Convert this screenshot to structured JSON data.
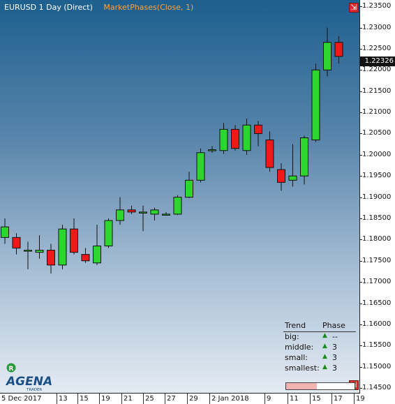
{
  "header": {
    "symbol_label": "EURUSD 1 Day (Direct)",
    "indicator_label": "MarketPhases(Close, 1)"
  },
  "buttons": {
    "maximize_top": "⇲",
    "maximize_bottom": "⇲"
  },
  "colors": {
    "bull": "#2fd52f",
    "bear": "#f01818",
    "background_top": "#1d5f8e",
    "background_bottom": "#e4ebf3",
    "phase_arrow": "#1c8a1c",
    "phase_bar_fill": "#f3b3b3"
  },
  "current_price": "1.22326",
  "chart_data": {
    "type": "candlestick",
    "instrument": "EURUSD",
    "timeframe": "1 Day",
    "ylim": [
      1.1437,
      1.2365
    ],
    "y_ticks": [
      "1.23500",
      "1.23000",
      "1.22500",
      "1.22000",
      "1.21500",
      "1.21000",
      "1.20500",
      "1.20000",
      "1.19500",
      "1.19000",
      "1.18500",
      "1.18000",
      "1.17500",
      "1.17000",
      "1.16500",
      "1.16000",
      "1.15500",
      "1.15000",
      "1.14500"
    ],
    "y_tick_values": [
      1.235,
      1.23,
      1.225,
      1.22,
      1.215,
      1.21,
      1.205,
      1.2,
      1.195,
      1.19,
      1.185,
      1.18,
      1.175,
      1.17,
      1.165,
      1.16,
      1.155,
      1.15,
      1.145
    ],
    "x_labels": [
      "5 Dec 2017",
      "13",
      "15",
      "19",
      "21",
      "25",
      "27",
      "29",
      "2 Jan 2018",
      "9",
      "11",
      "15",
      "17",
      "19"
    ],
    "candles": [
      {
        "open": 1.1805,
        "high": 1.185,
        "low": 1.179,
        "close": 1.183
      },
      {
        "open": 1.1805,
        "high": 1.1815,
        "low": 1.1765,
        "close": 1.178
      },
      {
        "open": 1.1775,
        "high": 1.1795,
        "low": 1.173,
        "close": 1.1775
      },
      {
        "open": 1.177,
        "high": 1.181,
        "low": 1.1755,
        "close": 1.1775
      },
      {
        "open": 1.1775,
        "high": 1.179,
        "low": 1.172,
        "close": 1.174
      },
      {
        "open": 1.174,
        "high": 1.1835,
        "low": 1.173,
        "close": 1.1825
      },
      {
        "open": 1.1825,
        "high": 1.185,
        "low": 1.1765,
        "close": 1.177
      },
      {
        "open": 1.1765,
        "high": 1.178,
        "low": 1.1745,
        "close": 1.175
      },
      {
        "open": 1.1745,
        "high": 1.1835,
        "low": 1.174,
        "close": 1.1785
      },
      {
        "open": 1.1785,
        "high": 1.185,
        "low": 1.178,
        "close": 1.1845
      },
      {
        "open": 1.1845,
        "high": 1.19,
        "low": 1.1835,
        "close": 1.187
      },
      {
        "open": 1.187,
        "high": 1.188,
        "low": 1.186,
        "close": 1.1865
      },
      {
        "open": 1.1865,
        "high": 1.188,
        "low": 1.182,
        "close": 1.1865
      },
      {
        "open": 1.186,
        "high": 1.1875,
        "low": 1.1845,
        "close": 1.187
      },
      {
        "open": 1.186,
        "high": 1.1865,
        "low": 1.1857,
        "close": 1.186
      },
      {
        "open": 1.186,
        "high": 1.1905,
        "low": 1.1858,
        "close": 1.19
      },
      {
        "open": 1.19,
        "high": 1.196,
        "low": 1.1898,
        "close": 1.194
      },
      {
        "open": 1.194,
        "high": 1.2015,
        "low": 1.1935,
        "close": 1.2005
      },
      {
        "open": 1.201,
        "high": 1.202,
        "low": 1.2005,
        "close": 1.2012
      },
      {
        "open": 1.201,
        "high": 1.2075,
        "low": 1.2002,
        "close": 1.206
      },
      {
        "open": 1.206,
        "high": 1.207,
        "low": 1.201,
        "close": 1.2015
      },
      {
        "open": 1.201,
        "high": 1.2085,
        "low": 1.2,
        "close": 1.207
      },
      {
        "open": 1.207,
        "high": 1.208,
        "low": 1.202,
        "close": 1.205
      },
      {
        "open": 1.2035,
        "high": 1.2055,
        "low": 1.196,
        "close": 1.197
      },
      {
        "open": 1.1965,
        "high": 1.198,
        "low": 1.1915,
        "close": 1.1935
      },
      {
        "open": 1.194,
        "high": 1.2025,
        "low": 1.1925,
        "close": 1.195
      },
      {
        "open": 1.195,
        "high": 1.2045,
        "low": 1.193,
        "close": 1.204
      },
      {
        "open": 1.2035,
        "high": 1.2215,
        "low": 1.203,
        "close": 1.22
      },
      {
        "open": 1.22,
        "high": 1.23,
        "low": 1.2185,
        "close": 1.2265
      },
      {
        "open": 1.2265,
        "high": 1.228,
        "low": 1.2215,
        "close": 1.2232
      }
    ]
  },
  "market_phases": {
    "col_trend": "Trend",
    "col_phase": "Phase",
    "rows": [
      {
        "label": "big:",
        "arrow": "▲",
        "value": "--"
      },
      {
        "label": "middle:",
        "arrow": "▲",
        "value": "3"
      },
      {
        "label": "small:",
        "arrow": "▲",
        "value": "3"
      },
      {
        "label": "smallest:",
        "arrow": "▲",
        "value": "3"
      }
    ],
    "phase_bar_fill_fraction": 0.45
  },
  "logo": {
    "badge": "R",
    "name": "AGENA",
    "tagline": "TRADER"
  }
}
